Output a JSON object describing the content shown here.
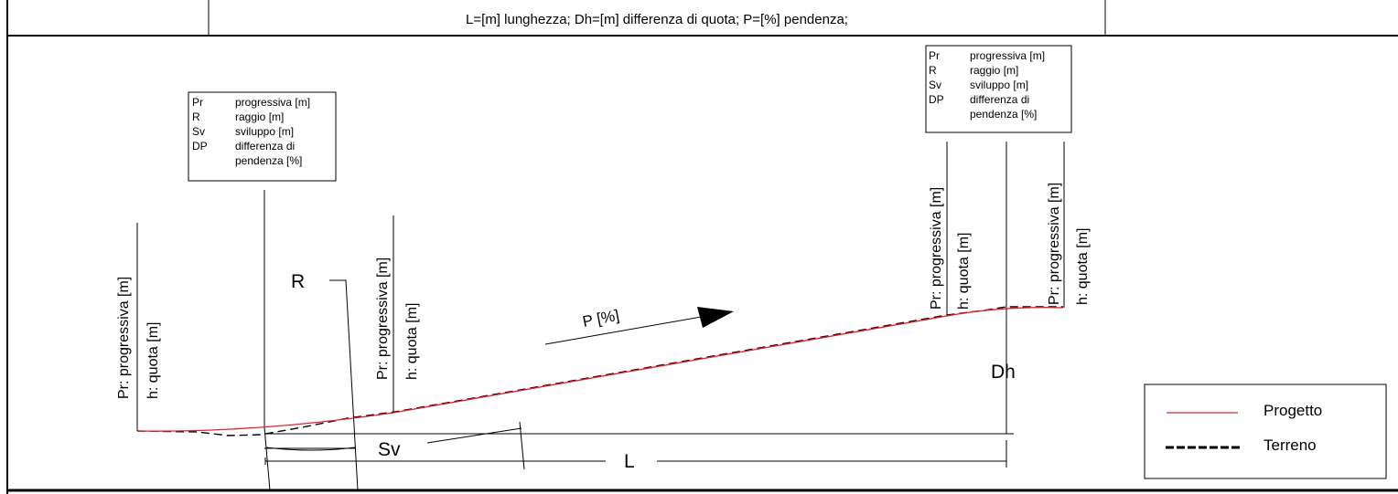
{
  "header": {
    "legend_text": "L=[m] lunghezza;  Dh=[m] differenza di quota;  P=[%] pendenza;"
  },
  "info_box": {
    "rows": [
      {
        "code": "Pr",
        "desc": "progressiva [m]"
      },
      {
        "code": "R",
        "desc": "raggio [m]"
      },
      {
        "code": "Sv",
        "desc": "sviluppo [m]"
      },
      {
        "code": "DP",
        "desc": "differenza di"
      }
    ],
    "continuation": "pendenza [%]"
  },
  "station_label": {
    "progressiva": "Pr: progressiva [m]",
    "quota": "h:  quota [m]"
  },
  "dimensions": {
    "radius": "R",
    "development": "Sv",
    "length": "L",
    "slope": "P [%]",
    "height_diff": "Dh"
  },
  "legend": {
    "items": [
      {
        "label": "Progetto",
        "color": "#e8202a",
        "style": "solid"
      },
      {
        "label": "Terreno",
        "color": "#000000",
        "style": "dashed"
      }
    ]
  },
  "colors": {
    "project_line": "#e8202a",
    "terrain_line": "#000000"
  }
}
